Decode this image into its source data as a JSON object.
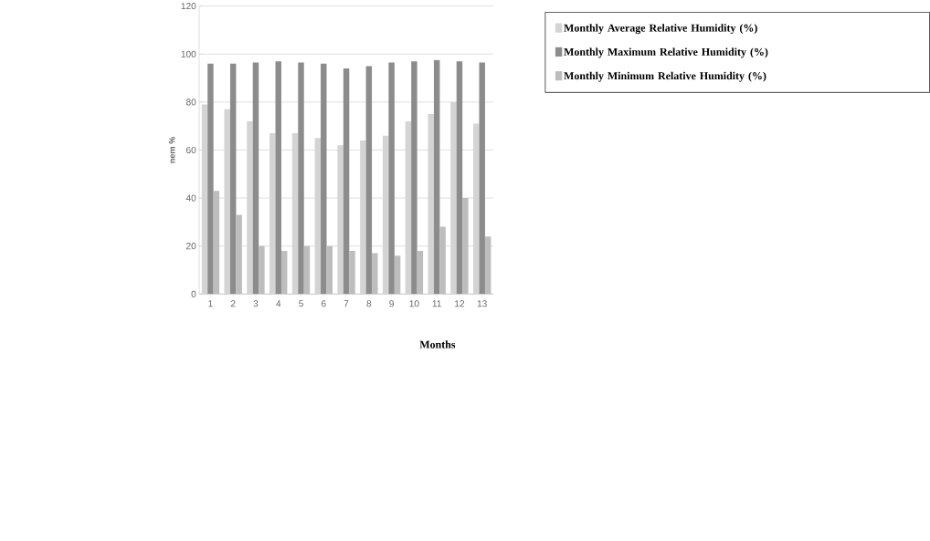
{
  "chart_data": {
    "type": "bar",
    "xlabel": "Months",
    "ylabel": "nem %",
    "categories": [
      "1",
      "2",
      "3",
      "4",
      "5",
      "6",
      "7",
      "8",
      "9",
      "10",
      "11",
      "12",
      "13"
    ],
    "series": [
      {
        "name": "Monthly Average Relative Humidity (%)",
        "color": "#d4d4d4",
        "values": [
          79,
          77,
          72,
          67,
          67,
          65,
          62,
          64,
          66,
          72,
          75,
          80,
          71
        ]
      },
      {
        "name": "Monthly Maximum Relative Humidity (%)",
        "color": "#8c8c8c",
        "values": [
          96,
          96,
          96.5,
          97,
          96.5,
          96,
          94,
          95,
          96.5,
          97,
          97.5,
          97,
          96.5
        ]
      },
      {
        "name": "Monthly Minimum Relative Humidity (%)",
        "color": "#bdbdbd",
        "values": [
          43,
          33,
          20,
          18,
          20,
          20,
          18,
          17,
          16,
          18,
          28,
          40,
          24
        ]
      }
    ],
    "ylim": [
      0,
      120
    ],
    "yticks": [
      0,
      20,
      40,
      60,
      80,
      100,
      120
    ],
    "grid": "y",
    "legend": "right"
  }
}
